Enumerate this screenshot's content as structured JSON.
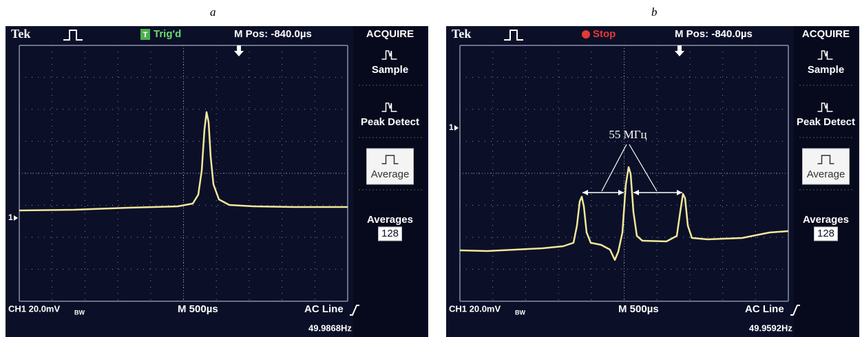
{
  "figure": {
    "panels": [
      {
        "label": "a",
        "top": {
          "brand": "Tek",
          "trigger_icon": "T",
          "status": "Trig'd",
          "position": "M Pos: -840.0µs"
        },
        "menu": {
          "title": "ACQUIRE",
          "items": [
            "Sample",
            "Peak Detect",
            "Average"
          ],
          "averages_label": "Averages",
          "averages_value": 128
        },
        "channel_marker": "1",
        "bottom": {
          "channel": "CH1  20.0mV",
          "bandwidth": "BW",
          "timebase": "M 500µs",
          "trigger_source": "AC Line",
          "frequency": "49.9868Hz"
        }
      },
      {
        "label": "b",
        "top": {
          "brand": "Tek",
          "status": "Stop",
          "position": "M Pos: -840.0µs"
        },
        "menu": {
          "title": "ACQUIRE",
          "items": [
            "Sample",
            "Peak Detect",
            "Average"
          ],
          "averages_label": "Averages",
          "averages_value": 128
        },
        "channel_marker": "1",
        "annotation": "55 МГц",
        "bottom": {
          "channel": "CH1  20.0mV",
          "bandwidth": "BW",
          "timebase": "M 500µs",
          "trigger_source": "AC Line",
          "frequency": "49.9592Hz"
        }
      }
    ]
  }
}
